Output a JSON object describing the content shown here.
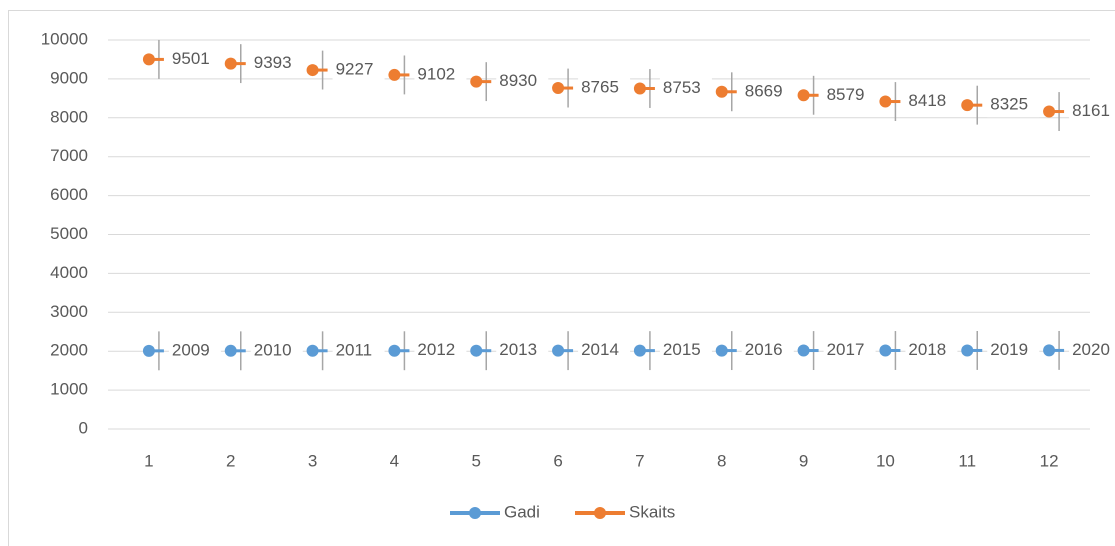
{
  "chart_data": {
    "type": "line",
    "categories": [
      1,
      2,
      3,
      4,
      5,
      6,
      7,
      8,
      9,
      10,
      11,
      12
    ],
    "series": [
      {
        "name": "Gadi",
        "color": "#5b9bd5",
        "values": [
          2009,
          2010,
          2011,
          2012,
          2013,
          2014,
          2015,
          2016,
          2017,
          2018,
          2019,
          2020
        ],
        "error": 500
      },
      {
        "name": "Skaits",
        "color": "#ed7d31",
        "values": [
          9501,
          9393,
          9227,
          9102,
          8930,
          8765,
          8753,
          8669,
          8579,
          8418,
          8325,
          8161
        ],
        "error": 500
      }
    ],
    "ylim": [
      0,
      10000
    ],
    "yticks": [
      0,
      1000,
      2000,
      3000,
      4000,
      5000,
      6000,
      7000,
      8000,
      9000,
      10000
    ],
    "grid": true,
    "legend": "bottom"
  }
}
